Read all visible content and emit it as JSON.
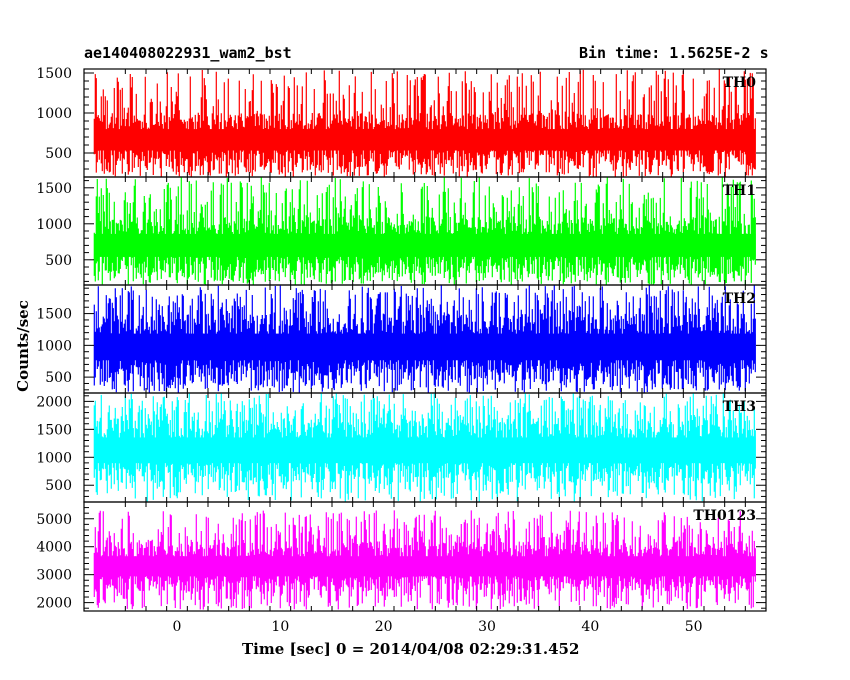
{
  "header": {
    "title_left": "ae140408022931_wam2_bst",
    "title_right": "Bin time: 1.5625E-2 s"
  },
  "chart_data": {
    "type": "line",
    "xlabel": "Time [sec] 0 = 2014/04/08 02:29:31.452",
    "ylabel": "Counts/sec",
    "xlim": [
      -9,
      57
    ],
    "xticks": [
      0,
      10,
      20,
      30,
      40,
      50
    ],
    "x_range": [
      -8,
      56
    ],
    "grid": false,
    "panels": [
      {
        "name": "TH0",
        "color": "#ff0000",
        "ylim": [
          200,
          1550
        ],
        "yticks": [
          500,
          1000,
          1500
        ],
        "band_low": 330,
        "band_high": 1000,
        "spike_max": 1550,
        "dip_min": 200
      },
      {
        "name": "TH1",
        "color": "#00ff00",
        "ylim": [
          150,
          1650
        ],
        "yticks": [
          500,
          1000,
          1500
        ],
        "band_low": 300,
        "band_high": 1100,
        "spike_max": 1650,
        "dip_min": 150
      },
      {
        "name": "TH2",
        "color": "#0000ff",
        "ylim": [
          250,
          1950
        ],
        "yticks": [
          500,
          1000,
          1500
        ],
        "band_low": 450,
        "band_high": 1500,
        "spike_max": 1950,
        "dip_min": 250
      },
      {
        "name": "TH3",
        "color": "#00ffff",
        "ylim": [
          200,
          2150
        ],
        "yticks": [
          500,
          1000,
          1500,
          2000
        ],
        "band_low": 550,
        "band_high": 1700,
        "spike_max": 2150,
        "dip_min": 200
      },
      {
        "name": "TH0123",
        "color": "#ff00ff",
        "ylim": [
          1700,
          5600
        ],
        "yticks": [
          2000,
          3000,
          4000,
          5000
        ],
        "band_low": 2400,
        "band_high": 4200,
        "spike_max": 5300,
        "dip_min": 1750
      }
    ]
  }
}
